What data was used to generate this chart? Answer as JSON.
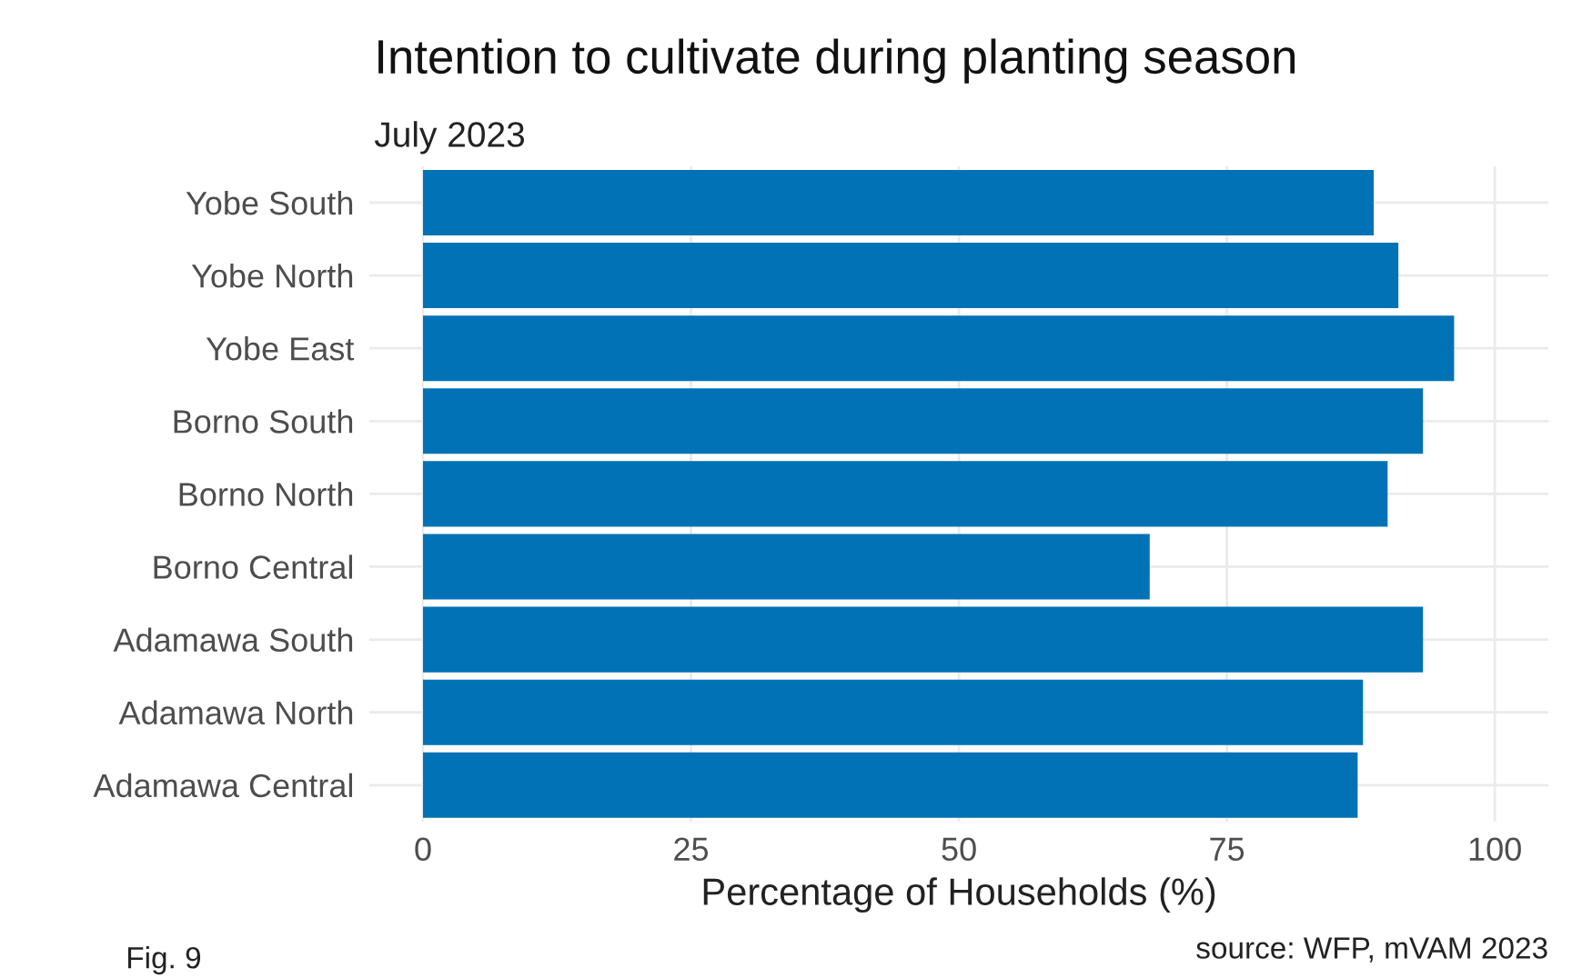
{
  "chart_data": {
    "type": "bar",
    "orientation": "horizontal",
    "title": "Intention to cultivate during planting season",
    "subtitle": "July 2023",
    "xlabel": "Percentage of Households (%)",
    "categories": [
      "Yobe South",
      "Yobe North",
      "Yobe East",
      "Borno South",
      "Borno North",
      "Borno Central",
      "Adamawa South",
      "Adamawa North",
      "Adamawa Central"
    ],
    "values": [
      88.7,
      91.0,
      96.2,
      93.3,
      90.0,
      67.8,
      93.3,
      87.7,
      87.2
    ],
    "color": "#0072b5",
    "xlim": [
      -5,
      105
    ],
    "xticks": [
      0,
      25,
      50,
      75,
      100
    ],
    "grid": true,
    "annotations": [
      "Fig. 9",
      "source: WFP, mVAM 2023"
    ]
  }
}
